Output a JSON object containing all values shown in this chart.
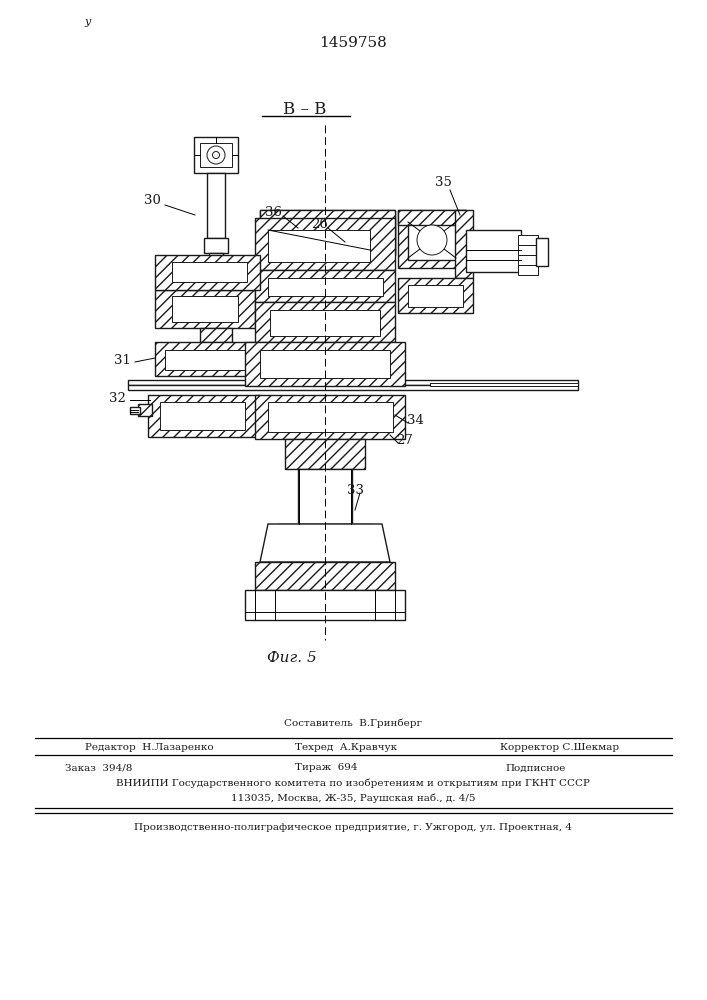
{
  "patent_number": "1459758",
  "section_label": "В – В",
  "figure_label": "Фиг. 5",
  "bg_color": "#ffffff",
  "line_color": "#1a1a1a",
  "footer": {
    "author": "Составитель  В.Гринберг",
    "editor": "Редактор  Н.Лазаренко",
    "techred": "Техред  А.Кравчук",
    "corrector": "Корректор С.Шекмар",
    "order": "Заказ  394/8",
    "tirazh": "Тираж  694",
    "podpisnoe": "Подписное",
    "vnipi": "ВНИИПИ Государственного комитета по изобретениям и открытиям при ГКНТ СССР",
    "address": "113035, Москва, Ж-35, Раушская наб., д. 4/5",
    "factory": "Производственно-полиграфическое предприятие, г. Ужгород, ул. Проектная, 4"
  }
}
